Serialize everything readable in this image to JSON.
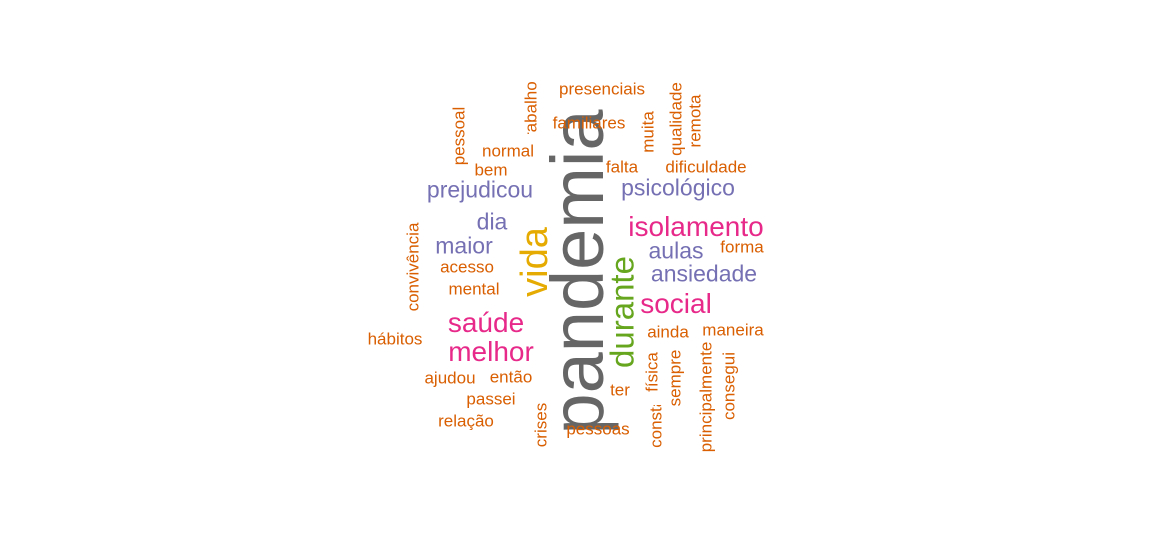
{
  "word_cloud": {
    "colors": {
      "dark_gray": "#666666",
      "gold": "#e6ab02",
      "green": "#66a61e",
      "magenta": "#e7298a",
      "purple": "#7570b3",
      "orange": "#d95f02"
    },
    "words": {
      "pandemia": "pandemia",
      "vida": "vida",
      "durante": "durante",
      "isolamento": "isolamento",
      "social": "social",
      "saude": "saúde",
      "melhor": "melhor",
      "prejudicou": "prejudicou",
      "psicologico": "psicológico",
      "dia": "dia",
      "maior": "maior",
      "aulas": "aulas",
      "ansiedade": "ansiedade",
      "presenciais": "presenciais",
      "familiares": "familiares",
      "normal": "normal",
      "bem": "bem",
      "falta": "falta",
      "dificuldade": "dificuldade",
      "forma": "forma",
      "acesso": "acesso",
      "mental": "mental",
      "habitos": "hábitos",
      "ainda": "ainda",
      "maneira": "maneira",
      "ajudou": "ajudou",
      "entao": "então",
      "passei": "passei",
      "relacao": "relação",
      "ter": "ter",
      "pessoas": "pessoas",
      "trabalho": "trabalho",
      "pessoal": "pessoal",
      "muita": "muita",
      "qualidade": "qualidade",
      "remota": "remota",
      "convivencia": "convivência",
      "crises": "crises",
      "fisica": "física",
      "sempre": "sempre",
      "constante": "constante",
      "principalmente": "principalmente",
      "consegui": "consegui"
    }
  }
}
